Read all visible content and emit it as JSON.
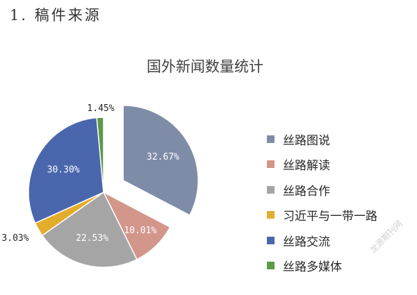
{
  "heading": "1. 稿件来源",
  "watermark": "龙源期刊网",
  "chart_data": {
    "type": "pie",
    "title": "国外新闻数量统计",
    "slices": [
      {
        "label": "丝路图说",
        "value": 32.67,
        "display": "32.67%",
        "color": "#7f8ca7",
        "exploded": true
      },
      {
        "label": "丝路解读",
        "value": 10.01,
        "display": "10.01%",
        "color": "#d3968b",
        "exploded": false
      },
      {
        "label": "丝路合作",
        "value": 22.53,
        "display": "22.53%",
        "color": "#a5a5a5",
        "exploded": false
      },
      {
        "label": "习近平与一带一路",
        "value": 3.03,
        "display": "3.03%",
        "color": "#e3ad2c",
        "exploded": false
      },
      {
        "label": "丝路交流",
        "value": 30.3,
        "display": "30.30%",
        "color": "#4a67ad",
        "exploded": false
      },
      {
        "label": "丝路多媒体",
        "value": 1.45,
        "display": "1.45%",
        "color": "#5c9a46",
        "exploded": false
      }
    ],
    "legend_position": "right"
  }
}
